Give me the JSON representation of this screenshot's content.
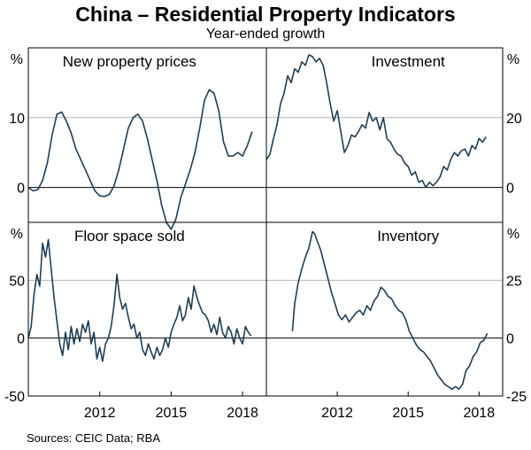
{
  "title": "China – Residential Property Indicators",
  "subtitle": "Year-ended growth",
  "source": "Sources: CEIC Data; RBA",
  "chart_data": [
    {
      "type": "line",
      "panel": "top-left",
      "title": "New property prices",
      "unit_label": "%",
      "axis_side": "left",
      "ylim": [
        -5,
        20
      ],
      "yticks": [
        0,
        10
      ],
      "xlim": [
        2009,
        2019
      ],
      "xticks": [],
      "xtick_labels": [],
      "series": [
        {
          "name": "New property prices",
          "x": [
            2009.0,
            2009.2,
            2009.4,
            2009.6,
            2009.8,
            2010.0,
            2010.2,
            2010.4,
            2010.6,
            2010.8,
            2011.0,
            2011.2,
            2011.4,
            2011.6,
            2011.8,
            2012.0,
            2012.2,
            2012.4,
            2012.6,
            2012.8,
            2013.0,
            2013.2,
            2013.4,
            2013.6,
            2013.8,
            2014.0,
            2014.2,
            2014.4,
            2014.6,
            2014.8,
            2015.0,
            2015.2,
            2015.4,
            2015.6,
            2015.8,
            2016.0,
            2016.2,
            2016.4,
            2016.6,
            2016.8,
            2017.0,
            2017.2,
            2017.4,
            2017.6,
            2017.8,
            2018.0,
            2018.2,
            2018.4
          ],
          "values": [
            0.0,
            -0.5,
            -0.3,
            1.0,
            3.5,
            7.5,
            10.5,
            10.8,
            9.5,
            7.8,
            5.5,
            4.0,
            2.5,
            1.0,
            -0.5,
            -1.2,
            -1.3,
            -1.0,
            0.2,
            2.5,
            5.5,
            8.5,
            10.0,
            10.5,
            9.5,
            7.0,
            4.0,
            1.0,
            -2.5,
            -5.0,
            -6.0,
            -4.5,
            -1.5,
            0.5,
            2.5,
            5.0,
            8.5,
            12.5,
            14.0,
            13.5,
            11.0,
            6.5,
            4.5,
            4.5,
            5.0,
            4.5,
            6.0,
            8.0
          ]
        }
      ]
    },
    {
      "type": "line",
      "panel": "top-right",
      "title": "Investment",
      "unit_label": "%",
      "axis_side": "right",
      "ylim": [
        -10,
        40
      ],
      "yticks": [
        0,
        20
      ],
      "xlim": [
        2009,
        2019
      ],
      "xticks": [],
      "xtick_labels": [],
      "series": [
        {
          "name": "Investment",
          "x": [
            2009.0,
            2009.15,
            2009.3,
            2009.45,
            2009.6,
            2009.75,
            2009.9,
            2010.05,
            2010.2,
            2010.35,
            2010.5,
            2010.65,
            2010.8,
            2010.95,
            2011.1,
            2011.25,
            2011.4,
            2011.55,
            2011.7,
            2011.85,
            2012.0,
            2012.15,
            2012.3,
            2012.45,
            2012.6,
            2012.75,
            2012.9,
            2013.05,
            2013.2,
            2013.35,
            2013.5,
            2013.65,
            2013.8,
            2013.95,
            2014.1,
            2014.25,
            2014.4,
            2014.55,
            2014.7,
            2014.85,
            2015.0,
            2015.15,
            2015.3,
            2015.45,
            2015.6,
            2015.75,
            2015.9,
            2016.05,
            2016.2,
            2016.35,
            2016.5,
            2016.65,
            2016.8,
            2016.95,
            2017.1,
            2017.25,
            2017.4,
            2017.55,
            2017.7,
            2017.85,
            2018.0,
            2018.15,
            2018.3
          ],
          "values": [
            8.0,
            9.5,
            14.0,
            18.0,
            24.0,
            27.0,
            32.0,
            30.0,
            34.0,
            33.0,
            36.0,
            35.0,
            38.0,
            37.5,
            36.0,
            37.0,
            35.0,
            30.0,
            24.0,
            19.0,
            22.0,
            16.0,
            10.0,
            12.0,
            15.0,
            14.5,
            16.0,
            18.0,
            17.0,
            21.5,
            19.0,
            20.0,
            16.5,
            20.0,
            14.0,
            13.0,
            11.0,
            9.5,
            9.0,
            7.0,
            6.0,
            3.5,
            4.5,
            1.5,
            2.0,
            0.0,
            1.5,
            0.5,
            1.5,
            3.0,
            6.0,
            5.0,
            8.0,
            10.0,
            9.0,
            10.5,
            11.0,
            9.0,
            12.0,
            11.0,
            14.0,
            13.0,
            14.5
          ]
        }
      ]
    },
    {
      "type": "line",
      "panel": "bottom-left",
      "title": "Floor space sold",
      "unit_label": "%",
      "axis_side": "left",
      "ylim": [
        -50,
        100
      ],
      "yticks": [
        -50,
        0,
        50
      ],
      "xlim": [
        2009,
        2019
      ],
      "xticks": [
        2012,
        2015,
        2018
      ],
      "xtick_labels": [
        "2012",
        "2015",
        "2018"
      ],
      "series": [
        {
          "name": "Floor space sold",
          "x": [
            2009.0,
            2009.12,
            2009.24,
            2009.36,
            2009.48,
            2009.6,
            2009.72,
            2009.84,
            2009.96,
            2010.08,
            2010.2,
            2010.32,
            2010.44,
            2010.56,
            2010.68,
            2010.8,
            2010.92,
            2011.04,
            2011.16,
            2011.28,
            2011.4,
            2011.52,
            2011.64,
            2011.76,
            2011.88,
            2012.0,
            2012.12,
            2012.24,
            2012.36,
            2012.48,
            2012.6,
            2012.72,
            2012.84,
            2012.96,
            2013.08,
            2013.2,
            2013.32,
            2013.44,
            2013.56,
            2013.68,
            2013.8,
            2013.92,
            2014.04,
            2014.16,
            2014.28,
            2014.4,
            2014.52,
            2014.64,
            2014.76,
            2014.88,
            2015.0,
            2015.12,
            2015.24,
            2015.36,
            2015.48,
            2015.6,
            2015.72,
            2015.84,
            2015.96,
            2016.08,
            2016.2,
            2016.32,
            2016.44,
            2016.56,
            2016.68,
            2016.8,
            2016.92,
            2017.04,
            2017.16,
            2017.28,
            2017.4,
            2017.52,
            2017.64,
            2017.76,
            2017.88,
            2018.0,
            2018.12,
            2018.24,
            2018.36
          ],
          "values": [
            0.0,
            10.0,
            38.0,
            55.0,
            45.0,
            82.0,
            70.0,
            85.0,
            60.0,
            35.0,
            15.0,
            -5.0,
            -15.0,
            5.0,
            -10.0,
            10.0,
            -5.0,
            8.0,
            -3.0,
            12.0,
            5.0,
            15.0,
            -5.0,
            5.0,
            -18.0,
            -8.0,
            -20.0,
            -5.0,
            0.0,
            10.0,
            28.0,
            55.0,
            35.0,
            25.0,
            30.0,
            18.0,
            8.0,
            12.0,
            0.0,
            5.0,
            -10.0,
            -15.0,
            -5.0,
            -12.0,
            -18.0,
            -8.0,
            -15.0,
            -10.0,
            0.0,
            -8.0,
            5.0,
            12.0,
            18.0,
            28.0,
            15.0,
            20.0,
            35.0,
            25.0,
            45.0,
            35.0,
            28.0,
            22.0,
            20.0,
            15.0,
            5.0,
            12.0,
            3.0,
            18.0,
            5.0,
            0.0,
            10.0,
            5.0,
            -5.0,
            8.0,
            0.0,
            -5.0,
            10.0,
            5.0,
            2.0
          ]
        }
      ]
    },
    {
      "type": "line",
      "panel": "bottom-right",
      "title": "Inventory",
      "unit_label": "%",
      "axis_side": "right",
      "ylim": [
        -25,
        50
      ],
      "yticks": [
        -25,
        0,
        25
      ],
      "xlim": [
        2009,
        2019
      ],
      "xticks": [
        2012,
        2015,
        2018
      ],
      "xtick_labels": [
        "2012",
        "2015",
        "2018"
      ],
      "series": [
        {
          "name": "Inventory",
          "x": [
            2010.1,
            2010.2,
            2010.35,
            2010.5,
            2010.65,
            2010.8,
            2010.95,
            2011.05,
            2011.15,
            2011.3,
            2011.45,
            2011.6,
            2011.75,
            2011.9,
            2012.05,
            2012.2,
            2012.35,
            2012.5,
            2012.65,
            2012.8,
            2012.95,
            2013.1,
            2013.25,
            2013.4,
            2013.55,
            2013.7,
            2013.85,
            2014.0,
            2014.15,
            2014.3,
            2014.45,
            2014.6,
            2014.75,
            2014.9,
            2015.05,
            2015.2,
            2015.35,
            2015.5,
            2015.65,
            2015.8,
            2015.95,
            2016.1,
            2016.25,
            2016.4,
            2016.55,
            2016.7,
            2016.85,
            2017.0,
            2017.15,
            2017.3,
            2017.45,
            2017.6,
            2017.75,
            2017.9,
            2018.05,
            2018.2,
            2018.35
          ],
          "values": [
            3.0,
            15.0,
            24.0,
            30.0,
            35.0,
            39.0,
            46.0,
            45.0,
            42.0,
            38.0,
            32.0,
            26.0,
            20.0,
            15.0,
            10.0,
            8.0,
            10.0,
            7.0,
            9.0,
            11.0,
            12.0,
            10.0,
            14.0,
            12.0,
            16.0,
            18.0,
            22.0,
            20.5,
            18.0,
            17.0,
            14.0,
            12.0,
            11.0,
            8.0,
            3.0,
            0.0,
            -3.0,
            -5.0,
            -6.0,
            -8.0,
            -10.0,
            -13.0,
            -16.0,
            -18.0,
            -20.0,
            -21.0,
            -22.0,
            -21.0,
            -22.0,
            -20.0,
            -14.0,
            -12.0,
            -8.0,
            -6.0,
            -2.0,
            -1.0,
            2.0
          ]
        }
      ]
    }
  ]
}
